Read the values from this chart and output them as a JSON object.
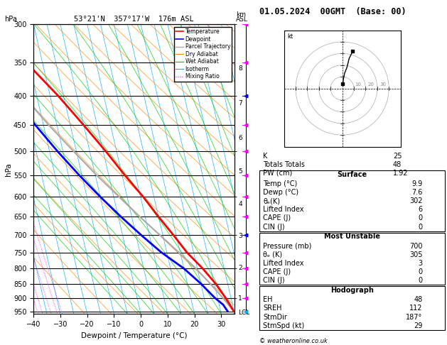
{
  "title_left": "53°21'N  357°17'W  176m ASL",
  "title_right": "01.05.2024  00GMT  (Base: 00)",
  "xlabel": "Dewpoint / Temperature (°C)",
  "ylabel_left": "hPa",
  "temp_color": "#ff0000",
  "dewp_color": "#0000ff",
  "parcel_color": "#aaaaaa",
  "dry_adiabat_color": "#ff8800",
  "wet_adiabat_color": "#00cc00",
  "isotherm_color": "#00aaff",
  "mixing_ratio_color": "#ff00ff",
  "pressure_ticks": [
    300,
    350,
    400,
    450,
    500,
    550,
    600,
    650,
    700,
    750,
    800,
    850,
    900,
    950
  ],
  "km_labels": [
    "8",
    "7",
    "6",
    "5",
    "4",
    "3",
    "2",
    "1",
    "LCL"
  ],
  "km_pressures": [
    357,
    411,
    472,
    540,
    616,
    701,
    795,
    899,
    952
  ],
  "temp_profile": {
    "pressure": [
      950,
      925,
      900,
      850,
      800,
      750,
      700,
      650,
      600,
      550,
      500,
      450,
      400,
      350,
      300
    ],
    "temp": [
      9.9,
      9.0,
      8.0,
      5.5,
      2.0,
      -2.5,
      -6.0,
      -10.0,
      -14.0,
      -19.0,
      -24.0,
      -30.0,
      -37.0,
      -46.0,
      -56.0
    ]
  },
  "dewp_profile": {
    "pressure": [
      950,
      925,
      900,
      850,
      800,
      750,
      700,
      650,
      600,
      550,
      500,
      450,
      400,
      350,
      300
    ],
    "temp": [
      7.6,
      6.5,
      4.0,
      0.0,
      -5.0,
      -12.0,
      -18.0,
      -24.0,
      -30.0,
      -36.0,
      -42.0,
      -48.0,
      -54.0,
      -58.0,
      -64.0
    ]
  },
  "parcel_profile": {
    "pressure": [
      950,
      900,
      850,
      800,
      750,
      700,
      650,
      600,
      550,
      500,
      450,
      400,
      350,
      300
    ],
    "temp": [
      9.9,
      7.0,
      3.5,
      -0.5,
      -5.5,
      -11.0,
      -17.0,
      -23.0,
      -29.5,
      -36.0,
      -43.0,
      -50.0,
      -58.5,
      -67.0
    ]
  },
  "lcl_pressure": 952,
  "x_range": [
    -40,
    35
  ],
  "skew_factor": 25.0,
  "mixing_ratios": [
    1,
    2,
    3,
    4,
    6,
    8,
    10,
    15,
    20,
    25
  ],
  "stats": {
    "K": 25,
    "Totals_Totals": 48,
    "PW_cm": 1.92,
    "Surface_Temp": 9.9,
    "Surface_Dewp": 7.6,
    "Surface_theta_e": 302,
    "Surface_LI": 6,
    "Surface_CAPE": 0,
    "Surface_CIN": 0,
    "MU_Pressure": 700,
    "MU_theta_e": 305,
    "MU_LI": 3,
    "MU_CAPE": 0,
    "MU_CIN": 0,
    "EH": 48,
    "SREH": 112,
    "StmDir": 187,
    "StmSpd": 29
  },
  "copyright": "© weatheronline.co.uk",
  "wind_pressures": [
    300,
    350,
    400,
    450,
    500,
    550,
    600,
    650,
    700,
    750,
    800,
    850,
    900,
    950
  ],
  "wind_colors": [
    "#ff00ff",
    "#ff00ff",
    "#0000ff",
    "#ff00ff",
    "#ff00ff",
    "#ff00ff",
    "#ff00ff",
    "#ff00ff",
    "#0000ff",
    "#ff00ff",
    "#ff00ff",
    "#ff00ff",
    "#ff00ff",
    "#00aaff"
  ]
}
